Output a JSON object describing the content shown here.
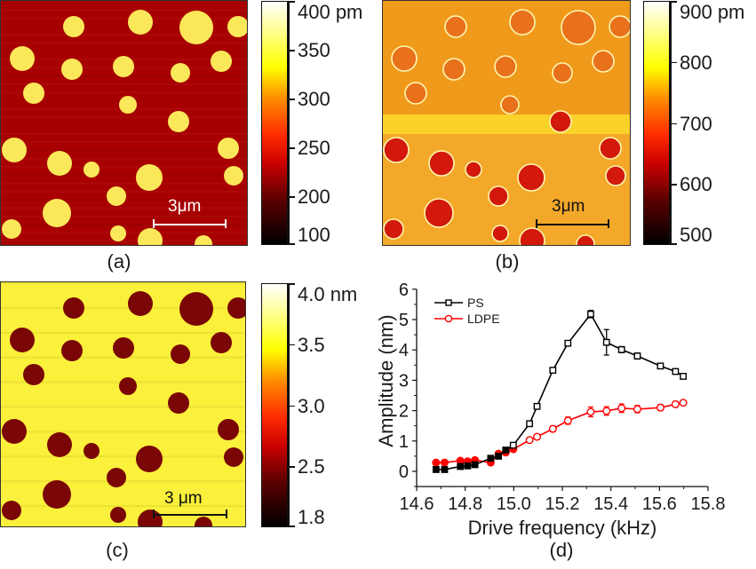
{
  "panels": {
    "a": {
      "label": "(a)",
      "scalebar": "3μm",
      "colorbar": {
        "ticks": [
          "400 pm",
          "350",
          "300",
          "250",
          "200",
          "100"
        ],
        "min": 100,
        "max": 400,
        "unit": "pm"
      }
    },
    "b": {
      "label": "(b)",
      "scalebar": "3μm",
      "colorbar": {
        "ticks": [
          "900 pm",
          "800",
          "700",
          "600",
          "500"
        ],
        "min": 500,
        "max": 900,
        "unit": "pm"
      }
    },
    "c": {
      "label": "(c)",
      "scalebar": "3 μm",
      "colorbar": {
        "ticks": [
          "4.0 nm",
          "3.5",
          "3.0",
          "2.5",
          "1.8"
        ],
        "min": 1.8,
        "max": 4.0,
        "unit": "nm"
      }
    },
    "d": {
      "label": "(d)"
    }
  },
  "colors": {
    "ps": "#000000",
    "ldpe": "#ff0000",
    "colormap": "afmhot"
  },
  "chart_data": {
    "type": "line",
    "title": "",
    "xlabel": "Drive frequency (kHz)",
    "ylabel": "Amplitude (nm)",
    "xlim": [
      14.6,
      15.8
    ],
    "ylim": [
      -0.5,
      6
    ],
    "xticks": [
      "14.6",
      "14.8",
      "15.0",
      "15.2",
      "15.4",
      "15.6",
      "15.8"
    ],
    "yticks": [
      "0",
      "1",
      "2",
      "3",
      "4",
      "5",
      "6"
    ],
    "legend": {
      "position": "top-left",
      "entries": [
        "PS",
        "LDPE"
      ]
    },
    "grid": false,
    "series": [
      {
        "name": "PS",
        "marker": "square",
        "x": [
          14.68,
          14.715,
          14.78,
          14.81,
          14.84,
          14.905,
          14.937,
          14.967,
          14.998,
          15.065,
          15.096,
          15.161,
          15.223,
          15.317,
          15.382,
          15.444,
          15.509,
          15.604,
          15.666,
          15.698
        ],
        "y": [
          0.06,
          0.06,
          0.16,
          0.18,
          0.22,
          0.43,
          0.5,
          0.7,
          0.86,
          1.57,
          2.14,
          3.33,
          4.22,
          5.18,
          4.25,
          4.01,
          3.8,
          3.47,
          3.29,
          3.13
        ],
        "err": [
          0.03,
          0.03,
          0.03,
          0.03,
          0.03,
          0.03,
          0.03,
          0.03,
          0.04,
          0.05,
          0.05,
          0.08,
          0.08,
          0.12,
          0.42,
          0.1,
          0.1,
          0.04,
          0.04,
          0.04
        ],
        "filled": [
          true,
          true,
          true,
          true,
          true,
          true,
          true,
          true,
          false,
          false,
          false,
          false,
          false,
          false,
          false,
          false,
          false,
          false,
          false,
          false
        ]
      },
      {
        "name": "LDPE",
        "marker": "circle",
        "x": [
          14.68,
          14.715,
          14.78,
          14.81,
          14.84,
          14.905,
          14.937,
          14.967,
          14.998,
          15.065,
          15.096,
          15.161,
          15.223,
          15.317,
          15.382,
          15.444,
          15.509,
          15.604,
          15.666,
          15.698
        ],
        "y": [
          0.29,
          0.29,
          0.35,
          0.33,
          0.37,
          0.29,
          0.58,
          0.62,
          0.73,
          1.03,
          1.14,
          1.4,
          1.67,
          1.96,
          1.99,
          2.08,
          2.05,
          2.1,
          2.21,
          2.26
        ],
        "err": [
          0.03,
          0.03,
          0.03,
          0.03,
          0.03,
          0.03,
          0.04,
          0.04,
          0.05,
          0.05,
          0.06,
          0.1,
          0.12,
          0.16,
          0.14,
          0.14,
          0.12,
          0.1,
          0.04,
          0.04
        ],
        "filled": [
          true,
          true,
          true,
          true,
          true,
          true,
          true,
          true,
          true,
          false,
          false,
          false,
          false,
          false,
          false,
          false,
          false,
          false,
          false,
          false
        ]
      }
    ]
  }
}
